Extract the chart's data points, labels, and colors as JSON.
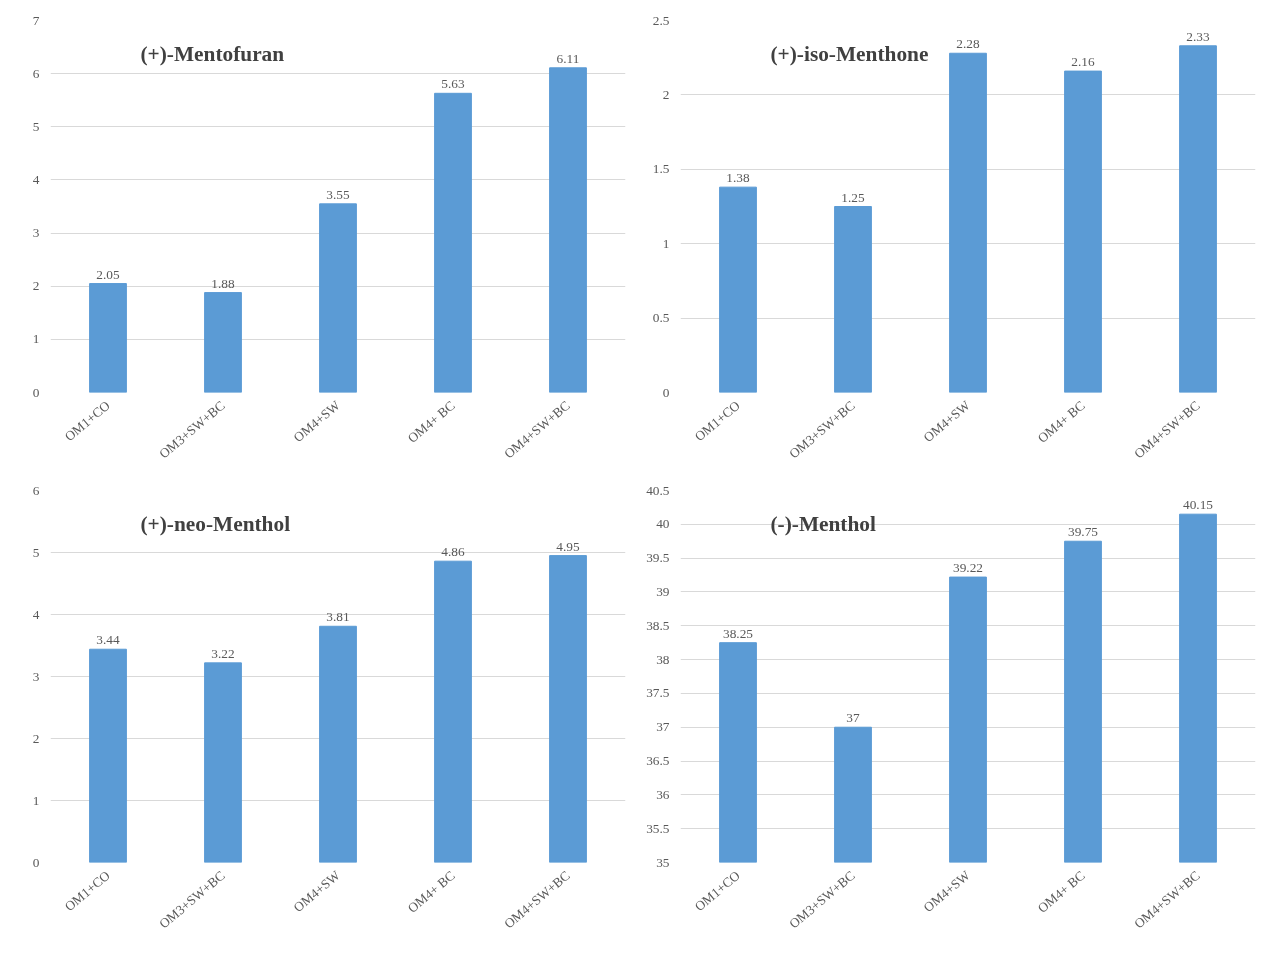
{
  "chart_data": [
    {
      "type": "bar",
      "title": "(+)-Mentofuran",
      "categories": [
        "OM1+CO",
        "OM3+SW+BC",
        "OM4+SW",
        "OM4+ BC",
        "OM4+SW+BC"
      ],
      "series": [
        {
          "color": "#5b9bd5",
          "values": [
            2.05,
            1.88,
            3.55,
            5.63,
            6.11
          ]
        }
      ],
      "ylim": [
        0,
        7
      ],
      "yticks": [
        0,
        1,
        2,
        3,
        4,
        5,
        6,
        7
      ],
      "grid": "y",
      "data_labels": true
    },
    {
      "type": "bar",
      "title": "(+)-iso-Menthone",
      "categories": [
        "OM1+CO",
        "OM3+SW+BC",
        "OM4+SW",
        "OM4+ BC",
        "OM4+SW+BC"
      ],
      "series": [
        {
          "color": "#5b9bd5",
          "values": [
            1.38,
            1.25,
            2.28,
            2.16,
            2.33
          ]
        }
      ],
      "ylim": [
        0,
        2.5
      ],
      "yticks": [
        0,
        0.5,
        1,
        1.5,
        2,
        2.5
      ],
      "grid": "y",
      "data_labels": true
    },
    {
      "type": "bar",
      "title": "(+)-neo-Menthol",
      "categories": [
        "OM1+CO",
        "OM3+SW+BC",
        "OM4+SW",
        "OM4+ BC",
        "OM4+SW+BC"
      ],
      "series": [
        {
          "color": "#5b9bd5",
          "values": [
            3.44,
            3.22,
            3.81,
            4.86,
            4.95
          ]
        }
      ],
      "ylim": [
        0,
        6
      ],
      "yticks": [
        0,
        1,
        2,
        3,
        4,
        5,
        6
      ],
      "grid": "y",
      "data_labels": true
    },
    {
      "type": "bar",
      "title": "(-)-Menthol",
      "categories": [
        "OM1+CO",
        "OM3+SW+BC",
        "OM4+SW",
        "OM4+ BC",
        "OM4+SW+BC"
      ],
      "series": [
        {
          "color": "#5b9bd5",
          "values": [
            38.25,
            37,
            39.22,
            39.75,
            40.15
          ]
        }
      ],
      "ylim": [
        35,
        40.5
      ],
      "yticks": [
        35,
        35.5,
        36,
        36.5,
        37,
        37.5,
        38,
        38.5,
        39,
        39.5,
        40,
        40.5
      ],
      "grid": "y",
      "data_labels": true
    }
  ]
}
